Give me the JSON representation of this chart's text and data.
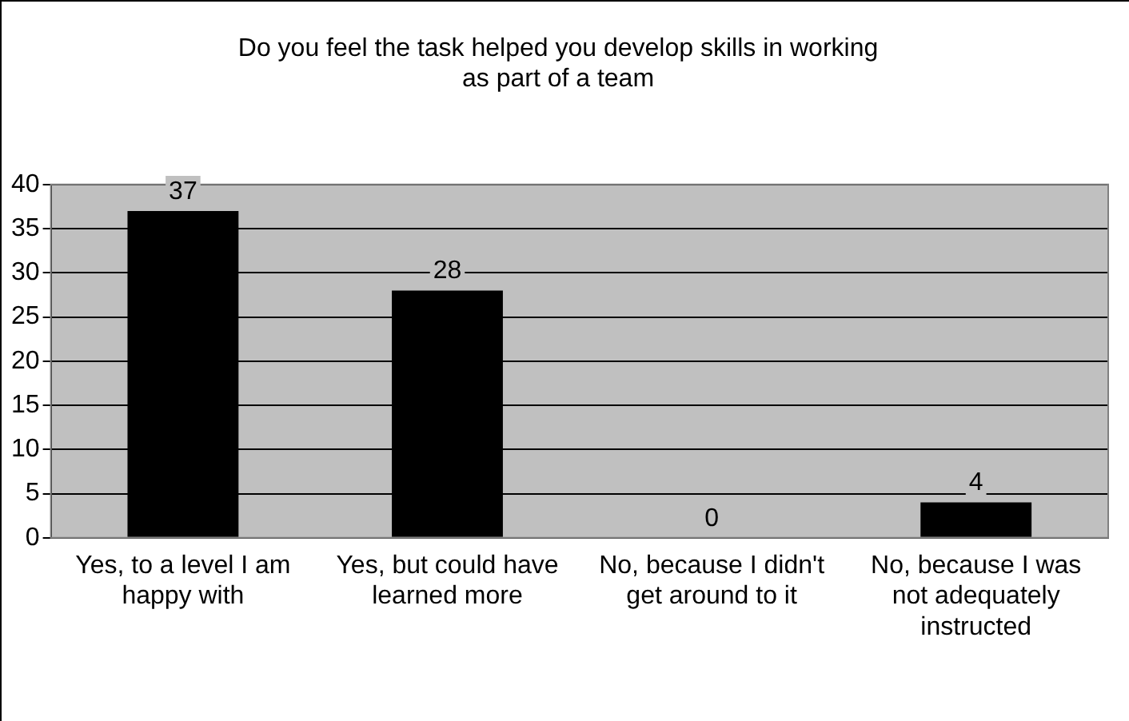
{
  "chart_data": {
    "type": "bar",
    "title": "Do you feel the task helped you develop skills in working as part of a team",
    "categories": [
      "Yes, to a level I am happy with",
      "Yes, but could have learned more",
      "No, because I didn't get around to it",
      "No, because I was not adequately instructed"
    ],
    "values": [
      37,
      28,
      0,
      4
    ],
    "color": "#000000",
    "ylim": [
      0,
      40
    ],
    "yticks": [
      0,
      5,
      10,
      15,
      20,
      25,
      30,
      35,
      40
    ],
    "grid": "y",
    "data_labels": true,
    "legend": false
  }
}
